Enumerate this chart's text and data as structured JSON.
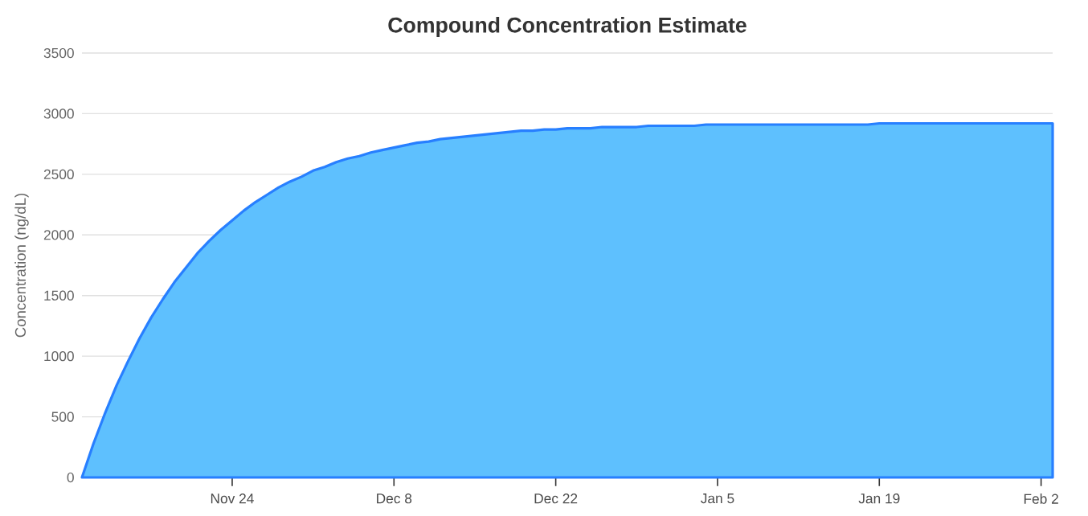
{
  "chart_data": {
    "type": "area",
    "title": "Compound Concentration Estimate",
    "ylabel": "Concentration (ng/dL)",
    "categories": [
      null,
      null,
      null,
      null,
      null,
      null,
      null,
      null,
      null,
      null,
      null,
      null,
      null,
      "Nov 24",
      null,
      null,
      null,
      null,
      null,
      null,
      null,
      null,
      null,
      null,
      null,
      null,
      null,
      "Dec 8",
      null,
      null,
      null,
      null,
      null,
      null,
      null,
      null,
      null,
      null,
      null,
      null,
      null,
      "Dec 22",
      null,
      null,
      null,
      null,
      null,
      null,
      null,
      null,
      null,
      null,
      null,
      null,
      null,
      "Jan 5",
      null,
      null,
      null,
      null,
      null,
      null,
      null,
      null,
      null,
      null,
      null,
      null,
      null,
      "Jan 19",
      null,
      null,
      null,
      null,
      null,
      null,
      null,
      null,
      null,
      null,
      null,
      null,
      null,
      "Feb 2",
      null
    ],
    "series": [
      {
        "color": "#5ec0fe",
        "values": [
          0,
          280,
          530,
          760,
          960,
          1150,
          1320,
          1470,
          1610,
          1730,
          1850,
          1950,
          2040,
          2120,
          2200,
          2270,
          2330,
          2390,
          2440,
          2480,
          2530,
          2560,
          2600,
          2630,
          2650,
          2680,
          2700,
          2720,
          2740,
          2760,
          2770,
          2790,
          2800,
          2810,
          2820,
          2830,
          2840,
          2850,
          2860,
          2860,
          2870,
          2870,
          2880,
          2880,
          2880,
          2890,
          2890,
          2890,
          2890,
          2900,
          2900,
          2900,
          2900,
          2900,
          2910,
          2910,
          2910,
          2910,
          2910,
          2910,
          2910,
          2910,
          2910,
          2910,
          2910,
          2910,
          2910,
          2910,
          2910,
          2920,
          2920,
          2920,
          2920,
          2920,
          2920,
          2920,
          2920,
          2920,
          2920,
          2920,
          2920,
          2920,
          2920,
          2920,
          2920
        ]
      }
    ],
    "ylim": [
      0,
      3500
    ],
    "yticks": [
      0,
      500,
      1000,
      1500,
      2000,
      2500,
      3000,
      3500
    ],
    "grid": "y"
  }
}
